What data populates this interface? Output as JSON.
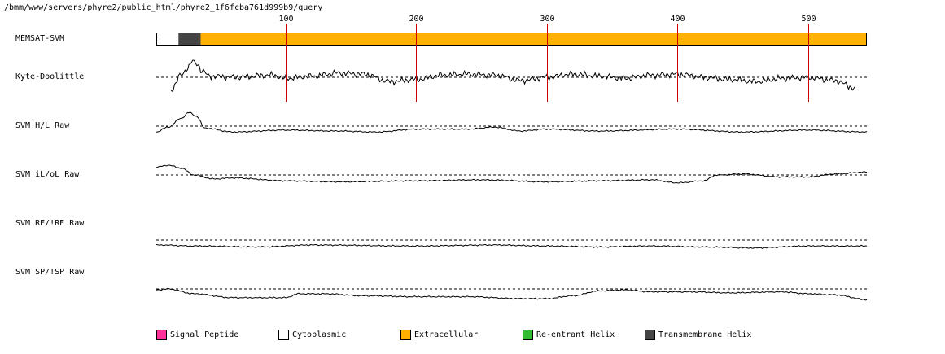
{
  "header": {
    "path": "/bmm/www/servers/phyre2/public_html/phyre2_1f6fcba761d999b9/query"
  },
  "tracks": [
    {
      "key": "memsat",
      "label": "MEMSAT-SVM"
    },
    {
      "key": "kd",
      "label": "Kyte-Doolittle"
    },
    {
      "key": "hl",
      "label": "SVM H/L Raw"
    },
    {
      "key": "ilol",
      "label": "SVM iL/oL Raw"
    },
    {
      "key": "reire",
      "label": "SVM RE/!RE Raw"
    },
    {
      "key": "spisp",
      "label": "SVM SP/!SP Raw"
    }
  ],
  "legend": [
    {
      "label": "Signal Peptide",
      "color": "#ff3399"
    },
    {
      "label": "Cytoplasmic",
      "color": "#ffffff"
    },
    {
      "label": "Extracellular",
      "color": "#ffb000"
    },
    {
      "label": "Re-entrant Helix",
      "color": "#33bb33"
    },
    {
      "label": "Transmembrane Helix",
      "color": "#444444"
    }
  ],
  "chart_data": {
    "type": "line",
    "x_axis": {
      "range": [
        1,
        545
      ],
      "ticks": [
        100,
        200,
        300,
        400,
        500
      ],
      "tick_color": "#cc0000"
    },
    "topology": [
      {
        "type": "Cytoplasmic",
        "start": 1,
        "end": 18
      },
      {
        "type": "Transmembrane Helix",
        "start": 18,
        "end": 35
      },
      {
        "type": "Extracellular",
        "start": 35,
        "end": 545
      }
    ],
    "series": [
      {
        "key": "kd",
        "start": 12,
        "end": 536,
        "anchors": [
          [
            12,
            -1.2
          ],
          [
            20,
            0.2
          ],
          [
            26,
            1.0
          ],
          [
            28,
            1.5
          ],
          [
            32,
            1.3
          ],
          [
            36,
            0.6
          ],
          [
            42,
            0.1
          ],
          [
            60,
            0.0
          ],
          [
            90,
            0.2
          ],
          [
            100,
            -0.1
          ],
          [
            120,
            0.1
          ],
          [
            140,
            0.4
          ],
          [
            160,
            0.3
          ],
          [
            180,
            -0.4
          ],
          [
            200,
            -0.2
          ],
          [
            220,
            0.2
          ],
          [
            240,
            0.3
          ],
          [
            260,
            0.2
          ],
          [
            280,
            -0.3
          ],
          [
            300,
            0.0
          ],
          [
            320,
            0.3
          ],
          [
            340,
            0.1
          ],
          [
            360,
            -0.1
          ],
          [
            380,
            0.2
          ],
          [
            400,
            0.3
          ],
          [
            420,
            0.0
          ],
          [
            440,
            -0.2
          ],
          [
            460,
            -0.4
          ],
          [
            480,
            -0.1
          ],
          [
            500,
            0.0
          ],
          [
            520,
            -0.3
          ],
          [
            536,
            -1.0
          ]
        ]
      },
      {
        "key": "hl",
        "start": 1,
        "end": 545,
        "anchors": [
          [
            1,
            -0.6
          ],
          [
            10,
            -0.1
          ],
          [
            20,
            0.8
          ],
          [
            26,
            1.4
          ],
          [
            32,
            1.0
          ],
          [
            38,
            -0.2
          ],
          [
            60,
            -0.6
          ],
          [
            100,
            -0.4
          ],
          [
            140,
            -0.5
          ],
          [
            170,
            -0.6
          ],
          [
            200,
            -0.3
          ],
          [
            240,
            -0.3
          ],
          [
            260,
            -0.1
          ],
          [
            280,
            -0.5
          ],
          [
            300,
            -0.3
          ],
          [
            340,
            -0.5
          ],
          [
            400,
            -0.3
          ],
          [
            450,
            -0.6
          ],
          [
            500,
            -0.4
          ],
          [
            545,
            -0.6
          ]
        ]
      },
      {
        "key": "ilol",
        "start": 1,
        "end": 545,
        "anchors": [
          [
            1,
            0.8
          ],
          [
            10,
            1.0
          ],
          [
            20,
            0.7
          ],
          [
            30,
            0.0
          ],
          [
            45,
            -0.4
          ],
          [
            60,
            -0.3
          ],
          [
            100,
            -0.6
          ],
          [
            140,
            -0.7
          ],
          [
            200,
            -0.6
          ],
          [
            250,
            -0.5
          ],
          [
            300,
            -0.7
          ],
          [
            340,
            -0.6
          ],
          [
            380,
            -0.5
          ],
          [
            400,
            -0.8
          ],
          [
            420,
            -0.6
          ],
          [
            430,
            0.0
          ],
          [
            450,
            0.1
          ],
          [
            480,
            -0.2
          ],
          [
            500,
            -0.2
          ],
          [
            520,
            0.1
          ],
          [
            545,
            0.3
          ]
        ]
      },
      {
        "key": "reire",
        "start": 1,
        "end": 545,
        "anchors": [
          [
            1,
            -0.5
          ],
          [
            30,
            -0.6
          ],
          [
            80,
            -0.7
          ],
          [
            120,
            -0.5
          ],
          [
            200,
            -0.6
          ],
          [
            260,
            -0.5
          ],
          [
            300,
            -0.6
          ],
          [
            340,
            -0.7
          ],
          [
            380,
            -0.6
          ],
          [
            420,
            -0.7
          ],
          [
            460,
            -0.8
          ],
          [
            500,
            -0.6
          ],
          [
            545,
            -0.6
          ]
        ]
      },
      {
        "key": "spisp",
        "start": 1,
        "end": 545,
        "anchors": [
          [
            1,
            -0.1
          ],
          [
            10,
            0.0
          ],
          [
            30,
            -0.5
          ],
          [
            60,
            -0.9
          ],
          [
            100,
            -0.9
          ],
          [
            110,
            -0.5
          ],
          [
            130,
            -0.5
          ],
          [
            160,
            -0.7
          ],
          [
            200,
            -0.8
          ],
          [
            240,
            -0.8
          ],
          [
            280,
            -1.0
          ],
          [
            300,
            -1.0
          ],
          [
            320,
            -0.7
          ],
          [
            340,
            -0.2
          ],
          [
            360,
            -0.1
          ],
          [
            380,
            -0.3
          ],
          [
            410,
            -0.3
          ],
          [
            440,
            -0.4
          ],
          [
            480,
            -0.3
          ],
          [
            500,
            -0.5
          ],
          [
            520,
            -0.6
          ],
          [
            545,
            -1.1
          ]
        ]
      }
    ]
  }
}
